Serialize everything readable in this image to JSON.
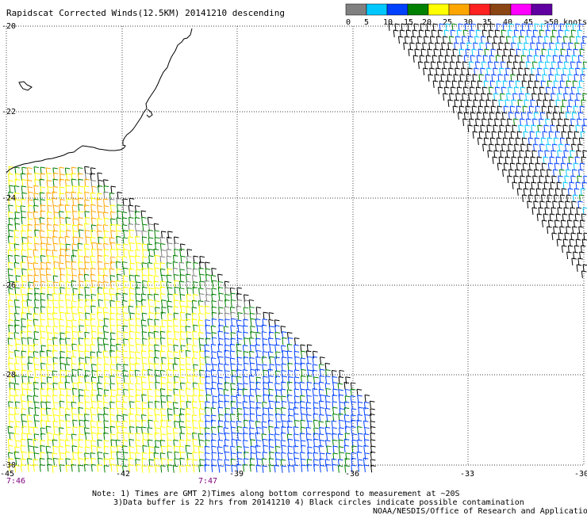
{
  "title": "Rapidscat Corrected Winds(12.5KM) 20141210 descending",
  "legend": {
    "unit": ">50 knots",
    "labels": [
      "0",
      "5",
      "10",
      "15",
      "20",
      "25",
      "30",
      "35",
      "40",
      "45"
    ],
    "colors": [
      "#808080",
      "#00c8ff",
      "#0040ff",
      "#008000",
      "#ffff00",
      "#ffa500",
      "#ff2020",
      "#8b4513",
      "#ff00ff",
      "#6000a0"
    ]
  },
  "axes": {
    "lon_labels": [
      "-45",
      "-42",
      "-39",
      "-36",
      "-33",
      "-30"
    ],
    "lat_labels": [
      "-20",
      "-22",
      "-24",
      "-26",
      "-28",
      "-30"
    ]
  },
  "times": [
    "7:46",
    "7:47"
  ],
  "notes": [
    "Note: 1) Times are GMT 2)Times along bottom correspond to measurement at ~20S",
    "3)Data buffer is 22 hrs from 20141210 4) Black circles indicate possible contamination",
    "NOAA/NESDIS/Office of Research and Applications"
  ],
  "colors": {
    "swath_black": "#000000",
    "coast": "#000000",
    "time_text": "#800080"
  }
}
